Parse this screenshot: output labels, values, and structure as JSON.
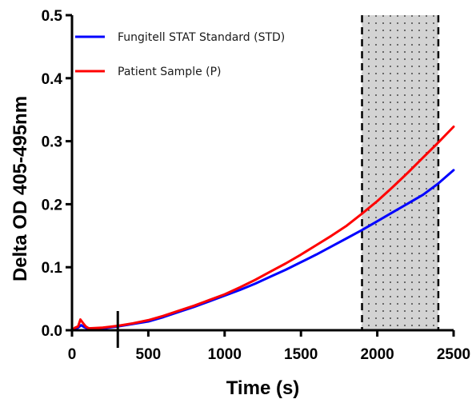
{
  "chart_data": {
    "type": "line",
    "title": "",
    "xlabel": "Time (s)",
    "ylabel": "Delta OD 405-495nm",
    "xlim": [
      0,
      2500
    ],
    "ylim": [
      0,
      0.5
    ],
    "x_ticks": [
      0,
      500,
      1000,
      1500,
      2000,
      2500
    ],
    "x_tick_labels": [
      "0",
      "500",
      "1000",
      "1500",
      "2000",
      "2500"
    ],
    "y_ticks": [
      0.0,
      0.1,
      0.2,
      0.3,
      0.4,
      0.5
    ],
    "y_tick_labels": [
      "0.0",
      "0.1",
      "0.2",
      "0.3",
      "0.4",
      "0.5"
    ],
    "grid": false,
    "legend_position": "top-left",
    "series": [
      {
        "name": "Fungitell STAT Standard (STD)",
        "color": "#0000ff",
        "x": [
          0,
          20,
          40,
          60,
          80,
          100,
          200,
          300,
          400,
          500,
          600,
          700,
          800,
          900,
          1000,
          1100,
          1200,
          1300,
          1400,
          1500,
          1600,
          1700,
          1800,
          1900,
          2000,
          2100,
          2200,
          2300,
          2400,
          2500
        ],
        "y": [
          0.0,
          0.003,
          0.004,
          0.008,
          0.005,
          0.003,
          0.003,
          0.006,
          0.01,
          0.014,
          0.021,
          0.029,
          0.037,
          0.046,
          0.055,
          0.064,
          0.074,
          0.085,
          0.096,
          0.108,
          0.12,
          0.133,
          0.146,
          0.159,
          0.173,
          0.187,
          0.201,
          0.215,
          0.233,
          0.254
        ]
      },
      {
        "name": "Patient Sample (P)",
        "color": "#ff0000",
        "x": [
          0,
          20,
          40,
          55,
          70,
          90,
          110,
          200,
          300,
          400,
          500,
          600,
          700,
          800,
          900,
          1000,
          1100,
          1200,
          1300,
          1400,
          1500,
          1600,
          1700,
          1800,
          1900,
          2000,
          2100,
          2200,
          2300,
          2400,
          2500
        ],
        "y": [
          0.0,
          0.004,
          0.006,
          0.017,
          0.012,
          0.006,
          0.003,
          0.004,
          0.007,
          0.011,
          0.016,
          0.023,
          0.031,
          0.039,
          0.048,
          0.057,
          0.068,
          0.08,
          0.093,
          0.106,
          0.12,
          0.135,
          0.15,
          0.166,
          0.185,
          0.205,
          0.227,
          0.25,
          0.274,
          0.298,
          0.323
        ]
      }
    ],
    "annotations": {
      "marker_line": {
        "x": 300,
        "y_from": -0.03,
        "y_to": 0.0
      },
      "shaded_region": {
        "x_start": 1900,
        "x_end": 2400,
        "fill": "#d3d3d3",
        "pattern": "dotted",
        "border": "dashed"
      }
    }
  }
}
